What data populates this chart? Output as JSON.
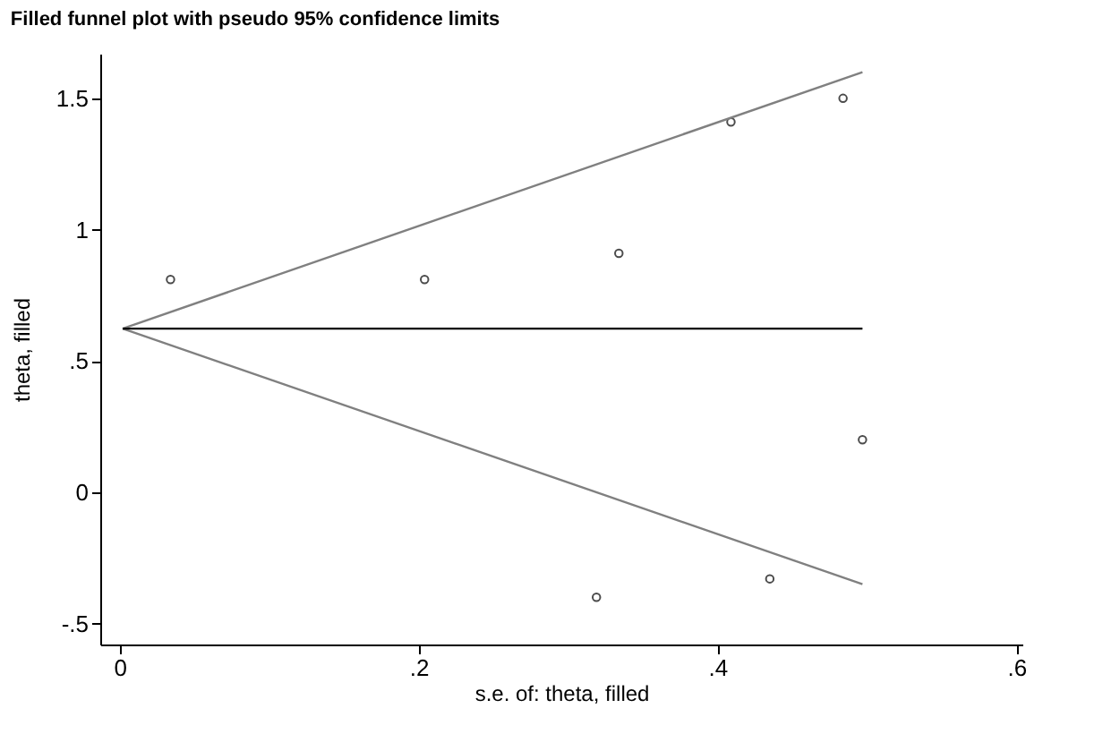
{
  "chart_data": {
    "type": "scatter",
    "title": "Filled funnel plot with pseudo 95% confidence limits",
    "xlabel": "s.e. of: theta, filled",
    "ylabel": "theta, filled",
    "series": [
      {
        "type": "scatter",
        "color": "#000000",
        "marker": "circle",
        "x": [
          0.034,
          0.204,
          0.319,
          0.334,
          0.409,
          0.435,
          0.484,
          0.497
        ],
        "values": [
          0.81,
          0.81,
          -0.4,
          0.91,
          1.41,
          -0.33,
          1.5,
          0.2
        ]
      },
      {
        "type": "line",
        "color": "#808080",
        "marker": "none",
        "x": [
          0.002,
          0.497
        ],
        "values": [
          0.623,
          1.6
        ]
      },
      {
        "type": "line",
        "color": "#808080",
        "marker": "none",
        "x": [
          0.002,
          0.497
        ],
        "values": [
          0.623,
          -0.35
        ]
      },
      {
        "type": "line",
        "color": "#000000",
        "marker": "none",
        "x": [
          0.002,
          0.497
        ],
        "values": [
          0.623,
          0.623
        ]
      }
    ],
    "xlim": [
      -0.013,
      0.604
    ],
    "ylim": [
      -0.58,
      1.67
    ],
    "xticks": [
      0,
      {
        "value": 0.2,
        "label": ".2"
      },
      {
        "value": 0.4,
        "label": ".4"
      },
      {
        "value": 0.6,
        "label": ".6"
      }
    ],
    "yticks": [
      {
        "value": -0.5,
        "label": "-.5"
      },
      0,
      {
        "value": 0.5,
        "label": ".5"
      },
      1,
      1.5
    ],
    "grid": false
  }
}
